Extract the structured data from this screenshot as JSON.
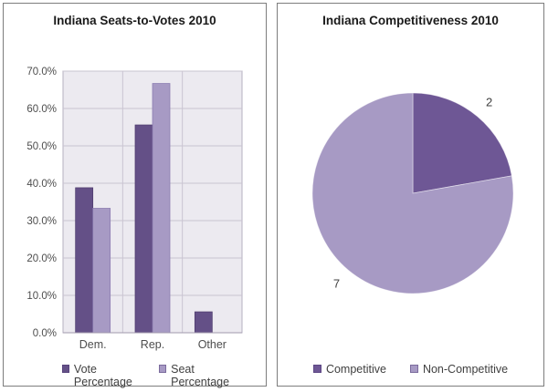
{
  "colors": {
    "plot_background": "#eceaf0",
    "gridline": "#c9c4d1",
    "plot_border": "#b6b0c0",
    "axis_line": "#a29aae",
    "panel_border": "#7d7d7d",
    "title_text": "#1a1a1a",
    "tick_text": "#4d4d4d",
    "label_text": "#3f3f3f",
    "vote_series_border": "#4f3d6e",
    "seat_series_border": "#8b7cb0"
  },
  "chart_data": [
    {
      "type": "bar",
      "title": "Indiana Seats-to-Votes 2010",
      "categories": [
        "Dem.",
        "Rep.",
        "Other"
      ],
      "series": [
        {
          "name": "Vote Percentage",
          "values": [
            38.8,
            55.6,
            5.6
          ],
          "color": "#645087"
        },
        {
          "name": "Seat Percentage",
          "values": [
            33.3,
            66.7,
            0.0
          ],
          "color": "#a79ac4"
        }
      ],
      "xlabel": "",
      "ylabel": "",
      "ylim": [
        0,
        70
      ],
      "ytick_step": 10,
      "ytick_labels": [
        "0.0%",
        "10.0%",
        "20.0%",
        "30.0%",
        "40.0%",
        "50.0%",
        "60.0%",
        "70.0%"
      ],
      "grid": true,
      "legend_position": "bottom"
    },
    {
      "type": "pie",
      "title": "Indiana Competitiveness 2010",
      "labels": [
        "Competitive",
        "Non-Competitive"
      ],
      "values": [
        2,
        7
      ],
      "data_labels": [
        "2",
        "7"
      ],
      "colors": [
        "#6e5795",
        "#a79ac4"
      ],
      "start_angle_deg": 0,
      "direction": "clockwise",
      "legend_position": "bottom"
    }
  ]
}
